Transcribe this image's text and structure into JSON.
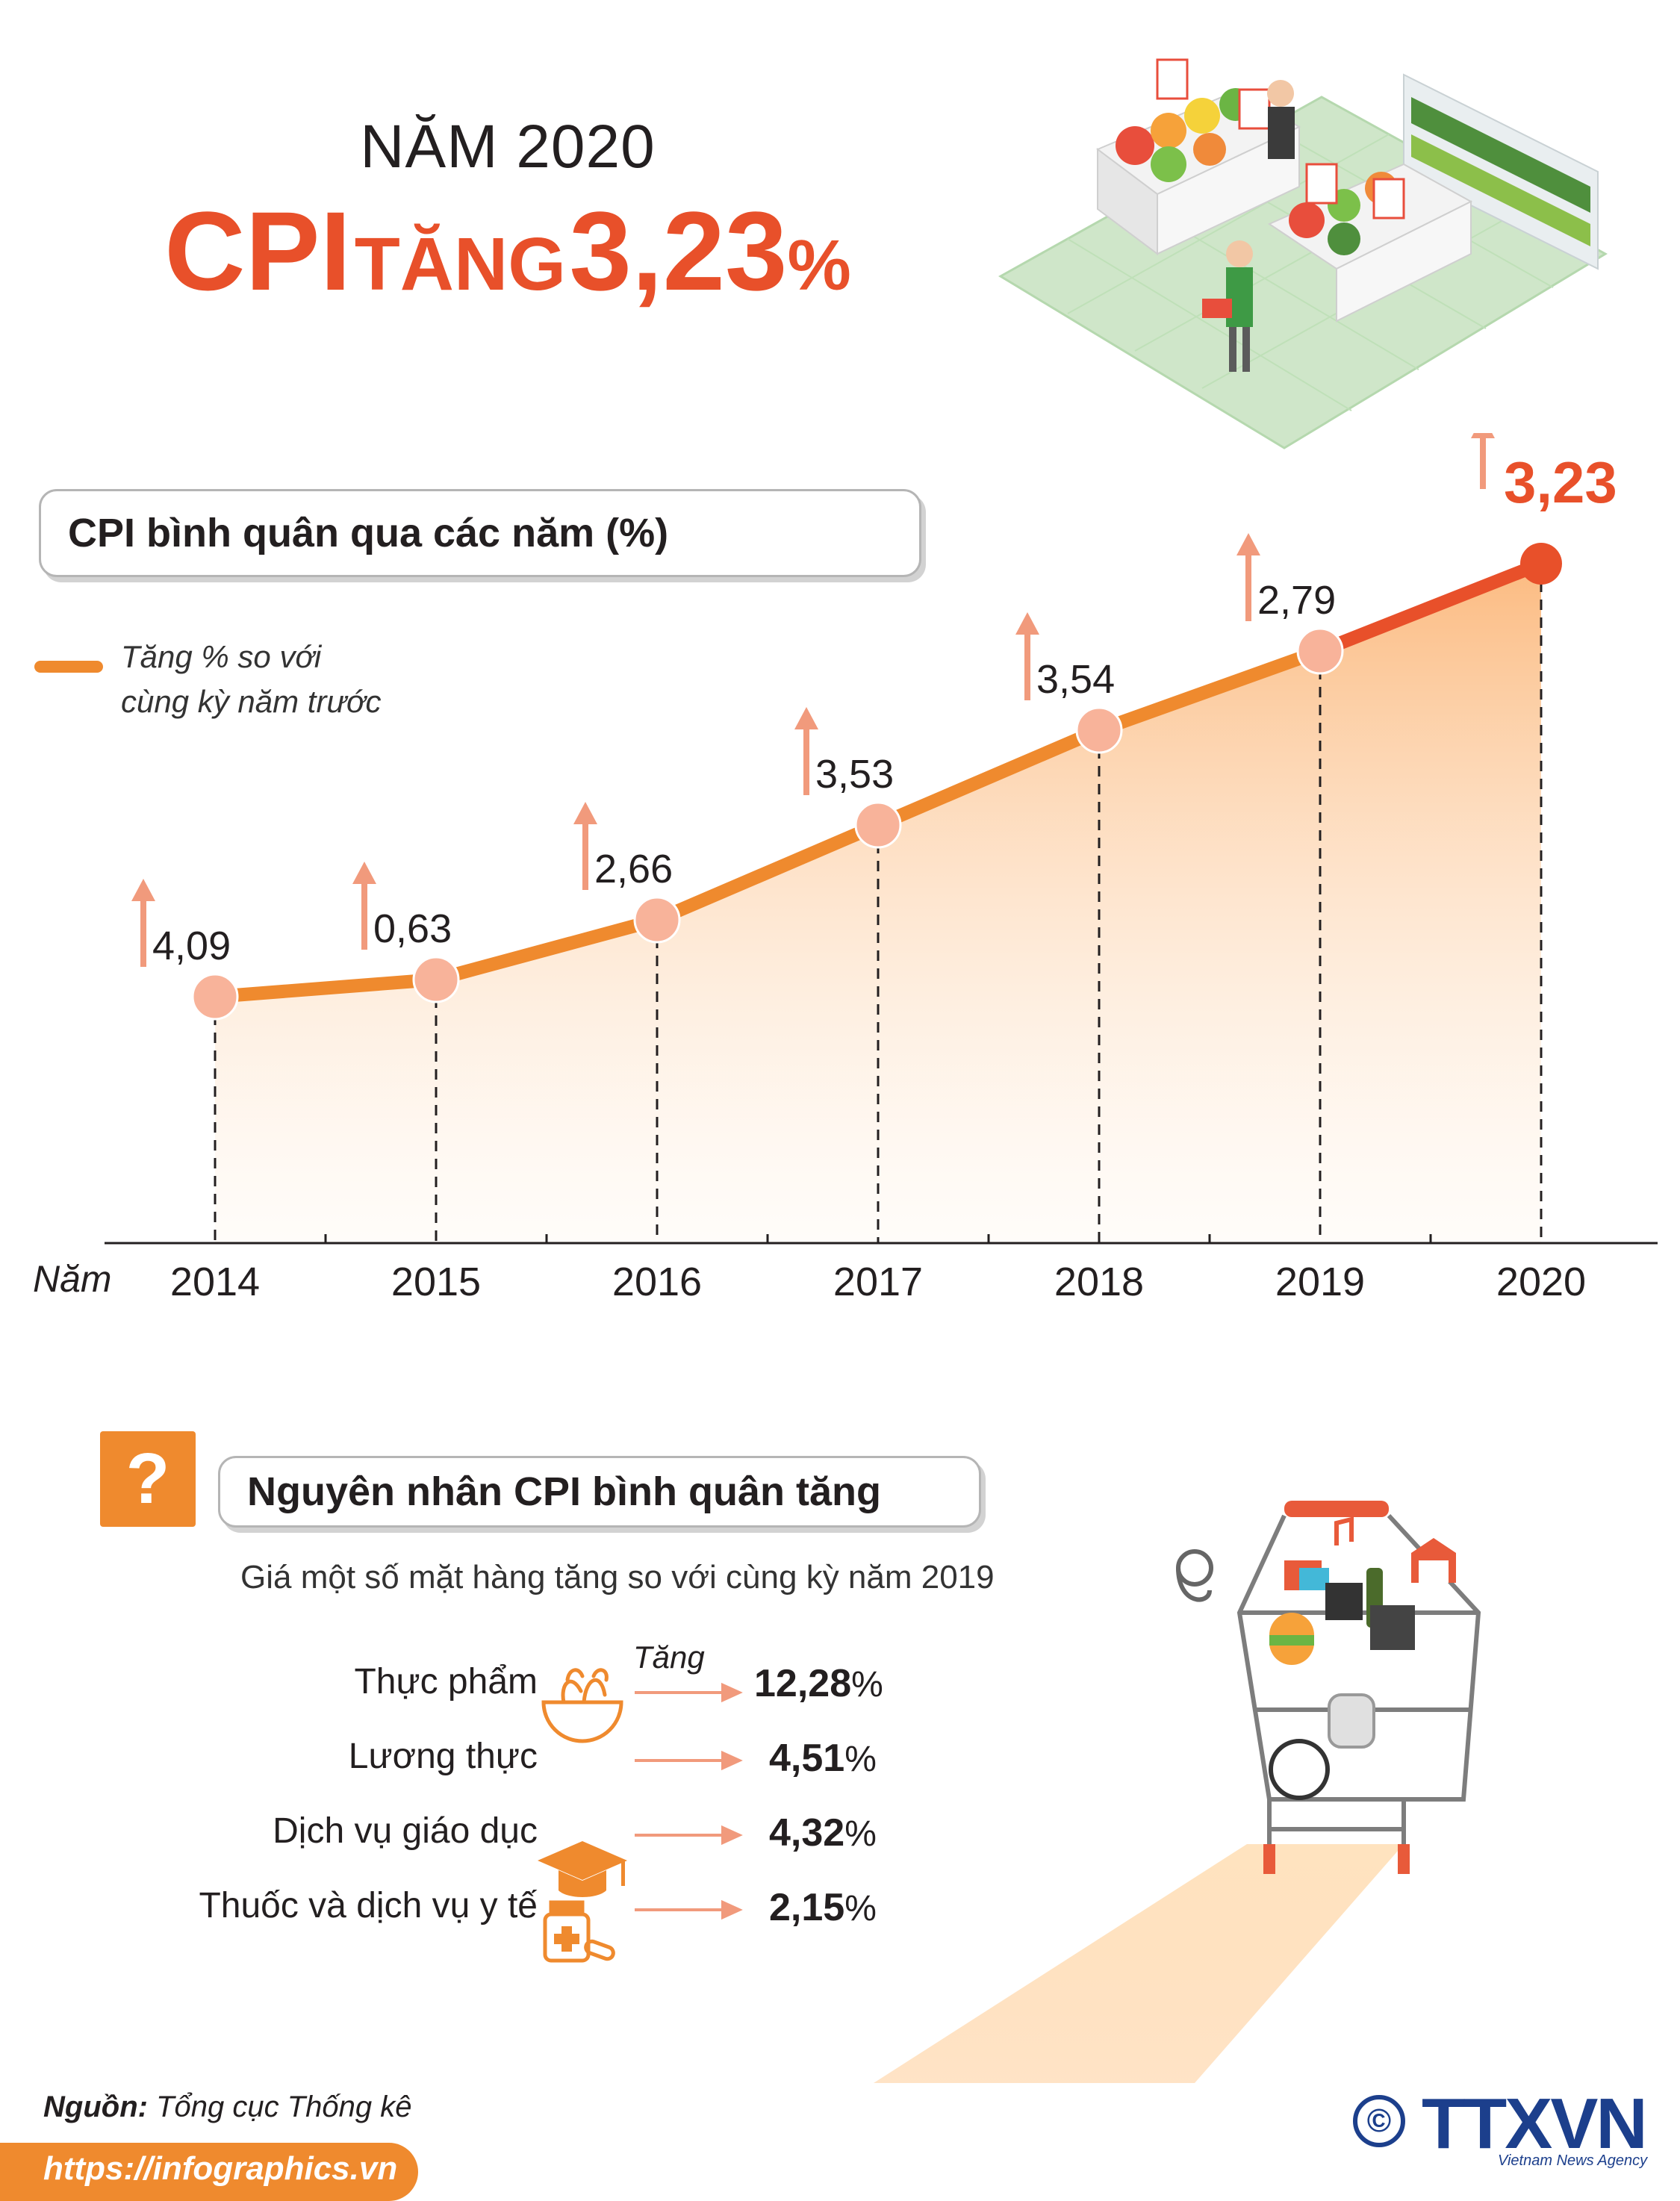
{
  "header": {
    "year_line": "NĂM 2020",
    "cpi_word": "CPI",
    "tang_word": "TĂNG",
    "value": "3,23",
    "pct": "%"
  },
  "section1": {
    "title": "CPI bình quân qua các năm (%)",
    "legend_line1": "Tăng % so với",
    "legend_line2": "cùng kỳ năm trước",
    "axis_label": "Năm"
  },
  "chart_data": {
    "type": "line",
    "title": "CPI bình quân qua các năm (%)",
    "xlabel": "Năm",
    "ylabel": "",
    "categories": [
      "2014",
      "2015",
      "2016",
      "2017",
      "2018",
      "2019",
      "2020"
    ],
    "series": [
      {
        "name": "Tăng % so với cùng kỳ năm trước",
        "values": [
          4.09,
          0.63,
          2.66,
          3.53,
          3.54,
          2.79,
          3.23
        ]
      }
    ],
    "value_labels": [
      "4,09",
      "0,63",
      "2,66",
      "3,53",
      "3,54",
      "2,79",
      "3,23"
    ],
    "colors": {
      "line": "#ef8a2e",
      "marker": "#f8b39a",
      "highlight": "#e8502a",
      "arrow": "#f19a7c",
      "fill": "#fbc48a"
    },
    "grid": false,
    "legend": "top-left"
  },
  "section2": {
    "title": "Nguyên nhân CPI bình quân tăng",
    "question_mark": "?",
    "subtitle": "Giá một số mặt hàng tăng so với cùng kỳ năm 2019",
    "increase_label": "Tăng",
    "items": [
      {
        "label": "Thực phẩm",
        "value": "12,28",
        "unit": "%",
        "icon": "salad-bowl-icon"
      },
      {
        "label": "Lương thực",
        "value": "4,51",
        "unit": "%",
        "icon": ""
      },
      {
        "label": "Dịch vụ giáo dục",
        "value": "4,32",
        "unit": "%",
        "icon": "graduation-cap-icon"
      },
      {
        "label": "Thuốc và dịch vụ y tế",
        "value": "2,15",
        "unit": "%",
        "icon": "medicine-bottle-icon"
      }
    ]
  },
  "footer": {
    "source_label": "Nguồn:",
    "source_text": "Tổng cục Thống kê",
    "url": "https://infographics.vn",
    "logo_text": "TTXVN",
    "logo_sub": "Vietnam News Agency",
    "copyright": "©"
  }
}
